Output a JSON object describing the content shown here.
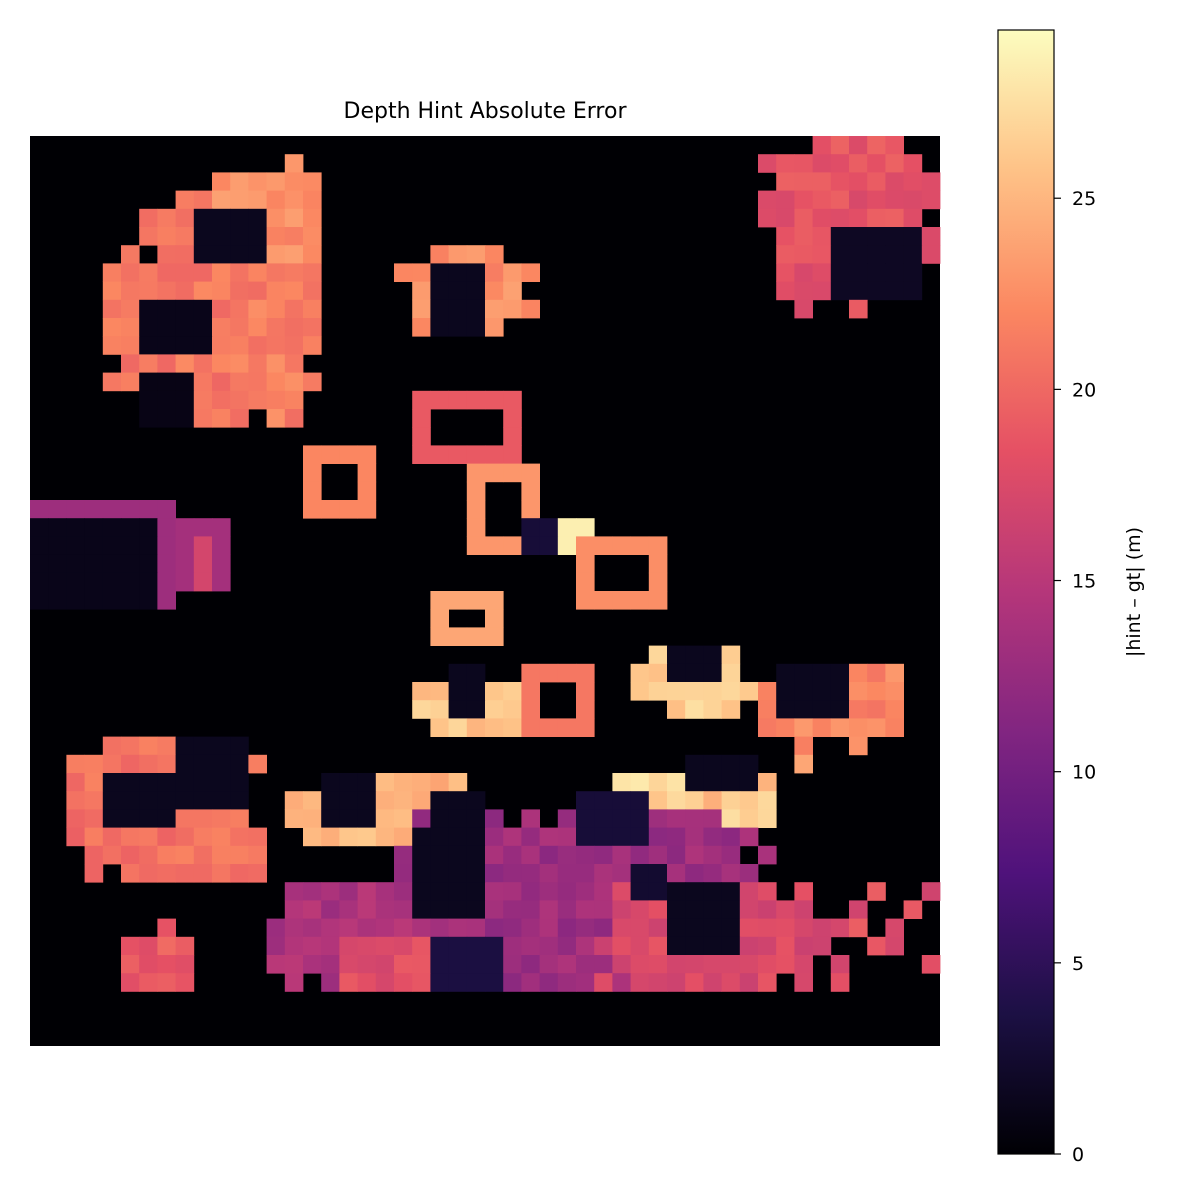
{
  "chart_data": {
    "type": "heatmap",
    "title": "Depth Hint Absolute Error",
    "colormap": "magma",
    "axes_visible": false,
    "grid": false,
    "colorbar": {
      "label": "|hint – gt| (m)",
      "placement": "right",
      "min": 0,
      "max": 29.4,
      "ticks": [
        0,
        5,
        10,
        15,
        20,
        25
      ],
      "tick_labels": [
        "0",
        "5",
        "10",
        "15",
        "20",
        "25"
      ]
    },
    "grid_shape": [
      50,
      50
    ],
    "regions": [
      {
        "type": "blob",
        "c0": 6,
        "r0": 2.5,
        "c1": 16,
        "r1": 16,
        "value": 21.5,
        "seed": 11
      },
      {
        "type": "blob",
        "c0": 10,
        "r0": 1.5,
        "c1": 16,
        "r1": 7,
        "value": 22.5,
        "seed": 12
      },
      {
        "type": "blob",
        "c0": 4,
        "r0": 6,
        "c1": 12,
        "r1": 15,
        "value": 21,
        "seed": 13
      },
      {
        "type": "rect",
        "c0": 9.5,
        "r0": 4,
        "c1": 12.5,
        "r1": 7,
        "value": 1.5
      },
      {
        "type": "rect",
        "c0": 6.5,
        "r0": 9,
        "c1": 10,
        "r1": 12,
        "value": 1.2
      },
      {
        "type": "rect",
        "c0": 6,
        "r0": 13,
        "c1": 9,
        "r1": 16,
        "value": 1.0
      },
      {
        "type": "blob",
        "c0": 40,
        "r0": 0,
        "c1": 50,
        "r1": 9.5,
        "value": 18.5,
        "seed": 21
      },
      {
        "type": "rect",
        "c0": 44,
        "r0": 5,
        "c1": 48.5,
        "r1": 9,
        "value": 1.8
      },
      {
        "type": "blob",
        "c0": 20.5,
        "r0": 6,
        "c1": 27.5,
        "r1": 11,
        "value": 22.5,
        "seed": 31
      },
      {
        "type": "rect",
        "c0": 22.5,
        "r0": 7.5,
        "c1": 25,
        "r1": 11,
        "value": 1.5
      },
      {
        "type": "frame",
        "c0": 21.5,
        "r0": 14,
        "c1": 26.5,
        "r1": 17.5,
        "value": 19,
        "w": 0.7
      },
      {
        "type": "frame",
        "c0": 15,
        "r0": 17.5,
        "c1": 18.5,
        "r1": 20.5,
        "value": 22,
        "w": 0.45
      },
      {
        "type": "frame",
        "c0": 24.5,
        "r0": 18,
        "c1": 28,
        "r1": 23,
        "value": 23,
        "w": 0.5
      },
      {
        "type": "rect",
        "c0": 27,
        "r0": 21,
        "c1": 30.5,
        "r1": 23,
        "value": 27
      },
      {
        "type": "rect",
        "c0": 29,
        "r0": 21,
        "c1": 30.5,
        "r1": 23,
        "value": 28.5
      },
      {
        "type": "rect",
        "c0": 27,
        "r0": 21.5,
        "c1": 28.2,
        "r1": 23,
        "value": 3
      },
      {
        "type": "frame",
        "c0": 30.5,
        "r0": 22.8,
        "c1": 35,
        "r1": 25.5,
        "value": 22.5,
        "w": 0.45
      },
      {
        "type": "rect",
        "c0": 0,
        "r0": 20,
        "c1": 8,
        "r1": 25.5,
        "value": 13
      },
      {
        "type": "rect",
        "c0": 0,
        "r0": 21,
        "c1": 7,
        "r1": 25.5,
        "value": 1.2
      },
      {
        "type": "rect",
        "c0": 8,
        "r0": 21,
        "c1": 11,
        "r1": 25,
        "value": 13.5
      },
      {
        "type": "rect",
        "c0": 9,
        "r0": 22.5,
        "c1": 9.5,
        "r1": 24.5,
        "value": 17
      },
      {
        "type": "frame",
        "c0": 22,
        "r0": 25.5,
        "c1": 25.5,
        "r1": 28,
        "value": 24,
        "w": 0.55
      },
      {
        "type": "blob",
        "c0": 21.5,
        "r0": 29.5,
        "c1": 27.5,
        "r1": 33.5,
        "value": 26,
        "seed": 41
      },
      {
        "type": "rect",
        "c0": 23,
        "r0": 29.5,
        "c1": 25,
        "r1": 32,
        "value": 1.5
      },
      {
        "type": "frame",
        "c0": 27,
        "r0": 29.5,
        "c1": 30.5,
        "r1": 32.5,
        "value": 21,
        "w": 0.3
      },
      {
        "type": "blob",
        "c0": 33,
        "r0": 28,
        "c1": 39.5,
        "r1": 31.5,
        "value": 26.5,
        "seed": 51
      },
      {
        "type": "rect",
        "c0": 35,
        "r0": 28,
        "c1": 38,
        "r1": 30,
        "value": 1.5
      },
      {
        "type": "blob",
        "c0": 40,
        "r0": 29,
        "c1": 48.5,
        "r1": 33.5,
        "value": 22,
        "seed": 52
      },
      {
        "type": "rect",
        "c0": 41.5,
        "r0": 29.5,
        "c1": 45,
        "r1": 32,
        "value": 1.5
      },
      {
        "type": "blob",
        "c0": 2,
        "r0": 33,
        "c1": 13,
        "r1": 41,
        "value": 20.5,
        "seed": 61
      },
      {
        "type": "rect",
        "c0": 8,
        "r0": 33.5,
        "c1": 11.5,
        "r1": 36.5,
        "value": 1.5
      },
      {
        "type": "rect",
        "c0": 4,
        "r0": 35,
        "c1": 7.5,
        "r1": 38,
        "value": 1.5
      },
      {
        "type": "blob",
        "c0": 14,
        "r0": 35,
        "c1": 24,
        "r1": 39.5,
        "value": 25,
        "seed": 71
      },
      {
        "type": "rect",
        "c0": 16.5,
        "r0": 35.5,
        "c1": 19,
        "r1": 38,
        "value": 1.5
      },
      {
        "type": "rect",
        "c0": 22.5,
        "r0": 36,
        "c1": 24.5,
        "r1": 38.5,
        "value": 1.5
      },
      {
        "type": "blob",
        "c0": 32,
        "r0": 35,
        "c1": 41,
        "r1": 39.5,
        "value": 27,
        "seed": 72
      },
      {
        "type": "rect",
        "c0": 36.5,
        "r0": 34,
        "c1": 39.5,
        "r1": 36,
        "value": 1.5
      },
      {
        "type": "blob",
        "c0": 20,
        "r0": 37,
        "c1": 41,
        "r1": 47,
        "value": 13,
        "seed": 81
      },
      {
        "type": "blob",
        "c0": 13,
        "r0": 41,
        "c1": 23,
        "r1": 47,
        "value": 14,
        "seed": 82
      },
      {
        "type": "blob",
        "c0": 31,
        "r0": 41,
        "c1": 44,
        "r1": 47,
        "value": 17.5,
        "seed": 83
      },
      {
        "type": "blob",
        "c0": 5,
        "r0": 43.5,
        "c1": 9,
        "r1": 47,
        "value": 19,
        "seed": 84
      },
      {
        "type": "blob",
        "c0": 17,
        "r0": 44,
        "c1": 24,
        "r1": 47,
        "value": 18,
        "seed": 85
      },
      {
        "type": "rect",
        "c0": 30,
        "r0": 36,
        "c1": 33.5,
        "r1": 39,
        "value": 3
      },
      {
        "type": "rect",
        "c0": 21,
        "r0": 38,
        "c1": 25,
        "r1": 43,
        "value": 1.5
      },
      {
        "type": "rect",
        "c0": 35,
        "r0": 41,
        "c1": 38.5,
        "r1": 45,
        "value": 1.5
      },
      {
        "type": "rect",
        "c0": 22.5,
        "r0": 44,
        "c1": 25.5,
        "r1": 47,
        "value": 3.5
      },
      {
        "type": "rect",
        "c0": 33,
        "r0": 40,
        "c1": 35,
        "r1": 41.5,
        "value": 2.5
      },
      {
        "type": "dots",
        "c0": 44,
        "r0": 41,
        "c1": 50,
        "r1": 47,
        "value": 18,
        "seed": 91
      },
      {
        "type": "dots",
        "c0": 37,
        "r0": 34,
        "c1": 43,
        "r1": 37,
        "value": 25,
        "seed": 92
      }
    ]
  }
}
